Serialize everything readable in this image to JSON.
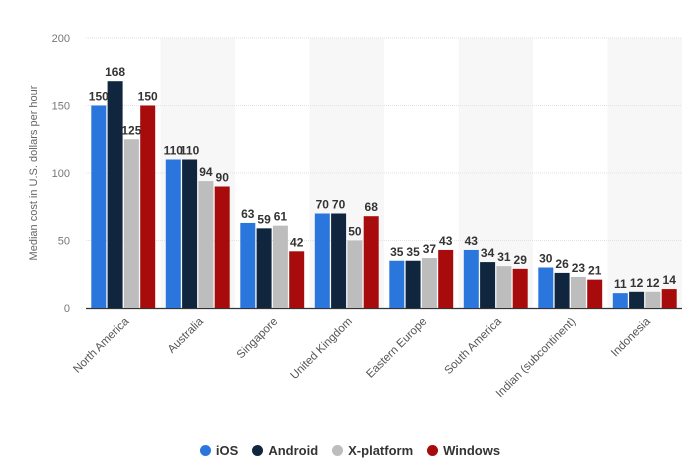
{
  "chart_data": {
    "type": "bar",
    "title": "",
    "xlabel": "",
    "ylabel": "Median cost in U.S. dollars per hour",
    "ylim": [
      0,
      200
    ],
    "yticks": [
      "0",
      "50",
      "100",
      "150",
      "200"
    ],
    "grid": true,
    "legend_position": "bottom",
    "categories": [
      "North America",
      "Australia",
      "Singapore",
      "United Kingdom",
      "Eastern Europe",
      "South America",
      "Indian (subcontinent)",
      "Indonesia"
    ],
    "series": [
      {
        "name": "iOS",
        "color": "#2a76dd",
        "values": [
          150,
          110,
          63,
          70,
          35,
          43,
          30,
          11
        ]
      },
      {
        "name": "Android",
        "color": "#10263e",
        "values": [
          168,
          110,
          59,
          70,
          35,
          34,
          26,
          12
        ]
      },
      {
        "name": "X-platform",
        "color": "#bdbdbd",
        "values": [
          125,
          94,
          61,
          50,
          37,
          31,
          23,
          12
        ]
      },
      {
        "name": "Windows",
        "color": "#a80b0b",
        "values": [
          150,
          90,
          42,
          68,
          43,
          29,
          21,
          14
        ]
      }
    ]
  }
}
